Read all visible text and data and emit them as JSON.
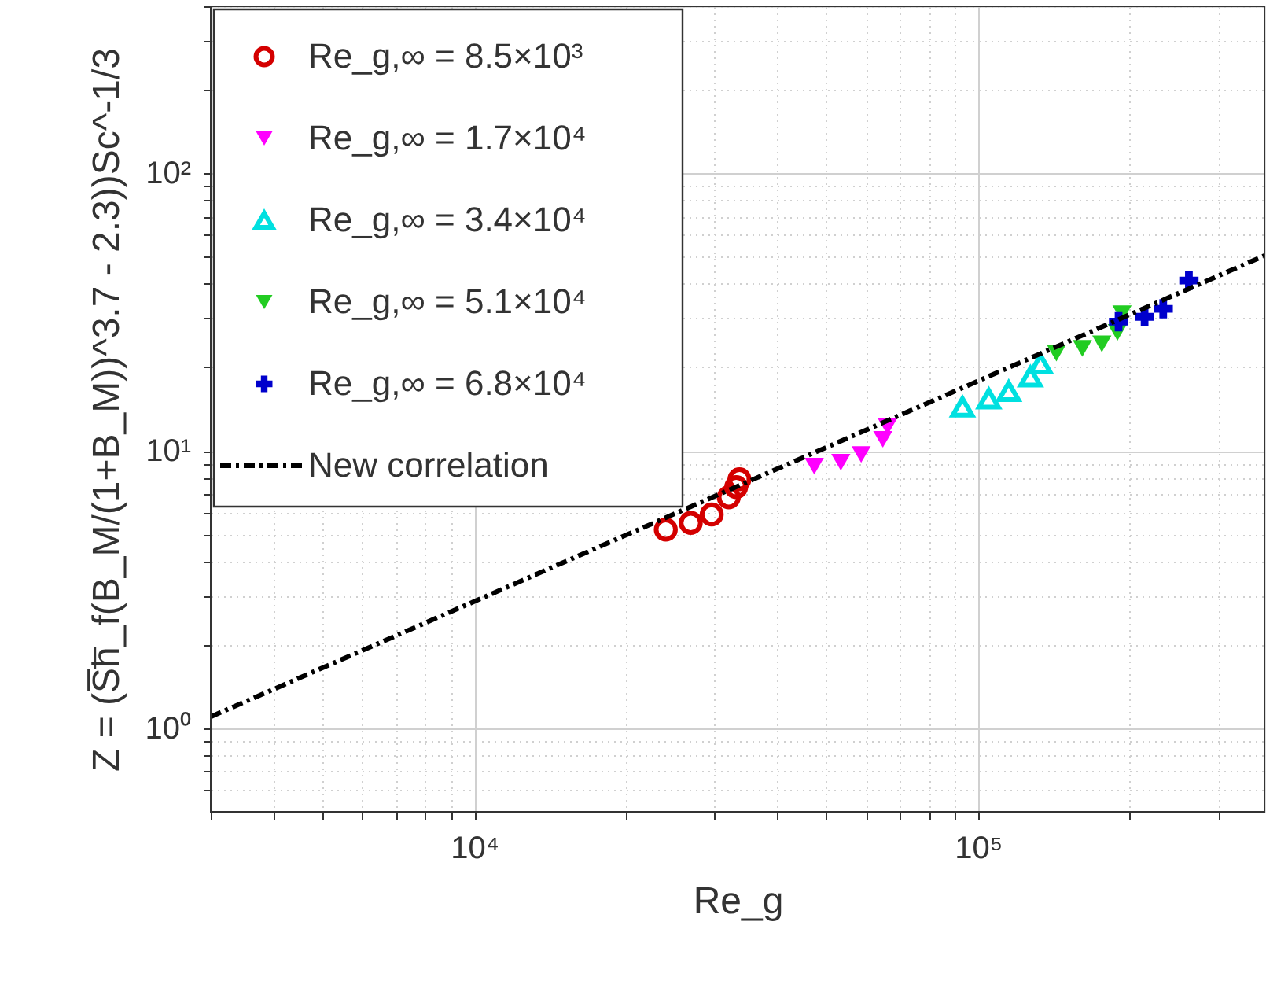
{
  "chart_data": {
    "type": "scatter",
    "xlabel": "Re_g",
    "ylabel": "Z = (S̅h̅_f(B_M/(1+B_M))^3.7 - 2.3))Sc^-1/3",
    "log": "xy",
    "grid": true,
    "legend": "top left",
    "xlim": [
      3000,
      370000
    ],
    "ylim": [
      0.5,
      400
    ],
    "xticks": [
      {
        "value": 3000,
        "label": null
      },
      {
        "value": 4000,
        "label": null
      },
      {
        "value": 5000,
        "label": null
      },
      {
        "value": 6000,
        "label": null
      },
      {
        "value": 7000,
        "label": null
      },
      {
        "value": 8000,
        "label": null
      },
      {
        "value": 9000,
        "label": null
      },
      {
        "value": 10000,
        "label": "10⁴"
      },
      {
        "value": 20000,
        "label": null
      },
      {
        "value": 30000,
        "label": null
      },
      {
        "value": 40000,
        "label": null
      },
      {
        "value": 50000,
        "label": null
      },
      {
        "value": 60000,
        "label": null
      },
      {
        "value": 70000,
        "label": null
      },
      {
        "value": 80000,
        "label": null
      },
      {
        "value": 90000,
        "label": null
      },
      {
        "value": 100000,
        "label": "10⁵"
      },
      {
        "value": 200000,
        "label": null
      },
      {
        "value": 300000,
        "label": null
      }
    ],
    "yticks": [
      {
        "value": 0.6,
        "label": null
      },
      {
        "value": 0.7,
        "label": null
      },
      {
        "value": 0.8,
        "label": null
      },
      {
        "value": 0.9,
        "label": null
      },
      {
        "value": 1,
        "label": "10⁰"
      },
      {
        "value": 2,
        "label": null
      },
      {
        "value": 3,
        "label": null
      },
      {
        "value": 4,
        "label": null
      },
      {
        "value": 5,
        "label": null
      },
      {
        "value": 6,
        "label": null
      },
      {
        "value": 7,
        "label": null
      },
      {
        "value": 8,
        "label": null
      },
      {
        "value": 9,
        "label": null
      },
      {
        "value": 10,
        "label": "10¹"
      },
      {
        "value": 20,
        "label": null
      },
      {
        "value": 30,
        "label": null
      },
      {
        "value": 40,
        "label": null
      },
      {
        "value": 50,
        "label": null
      },
      {
        "value": 60,
        "label": null
      },
      {
        "value": 70,
        "label": null
      },
      {
        "value": 80,
        "label": null
      },
      {
        "value": 90,
        "label": null
      },
      {
        "value": 100,
        "label": "10²"
      },
      {
        "value": 200,
        "label": null
      },
      {
        "value": 300,
        "label": null
      },
      {
        "value": 400,
        "label": null
      }
    ],
    "series": [
      {
        "name": "Re_g,∞ = 8.5×10³",
        "marker": "circle",
        "color": "#d40000",
        "x": [
          24000,
          26900,
          29600,
          32000,
          33100,
          33600
        ],
        "values": [
          5.2,
          5.5,
          5.9,
          6.8,
          7.4,
          7.9
        ]
      },
      {
        "name": "Re_g,∞ = 1.7×10⁴",
        "marker": "triangle-down",
        "color": "#ff00ff",
        "x": [
          47300,
          53400,
          58600,
          64700,
          66100
        ],
        "values": [
          8.8,
          9.1,
          9.7,
          11.0,
          12.2
        ]
      },
      {
        "name": "Re_g,∞ = 3.4×10⁴",
        "marker": "triangle",
        "color": "#00e0e0",
        "x": [
          93100,
          105000,
          115000,
          127000,
          133000
        ],
        "values": [
          14.4,
          15.4,
          16.4,
          18.5,
          20.6
        ]
      },
      {
        "name": "Re_g,∞ = 5.1×10⁴",
        "marker": "triangle-down",
        "color": "#22cc22",
        "x": [
          143000,
          161000,
          176000,
          189000,
          193000
        ],
        "values": [
          22.5,
          23.4,
          24.3,
          26.7,
          31.2
        ]
      },
      {
        "name": "Re_g,∞ = 6.8×10⁴",
        "marker": "cross",
        "color": "#0000cc",
        "x": [
          190000,
          214000,
          233000,
          256000,
          262000
        ],
        "values": [
          29.2,
          30.4,
          32.5,
          null,
          41.1
        ]
      },
      {
        "name": "New correlation",
        "type": "line",
        "line_style": "dashed",
        "color": "#000000",
        "x": [
          3000,
          370000
        ],
        "values": [
          1.1,
          50.5
        ]
      }
    ]
  }
}
